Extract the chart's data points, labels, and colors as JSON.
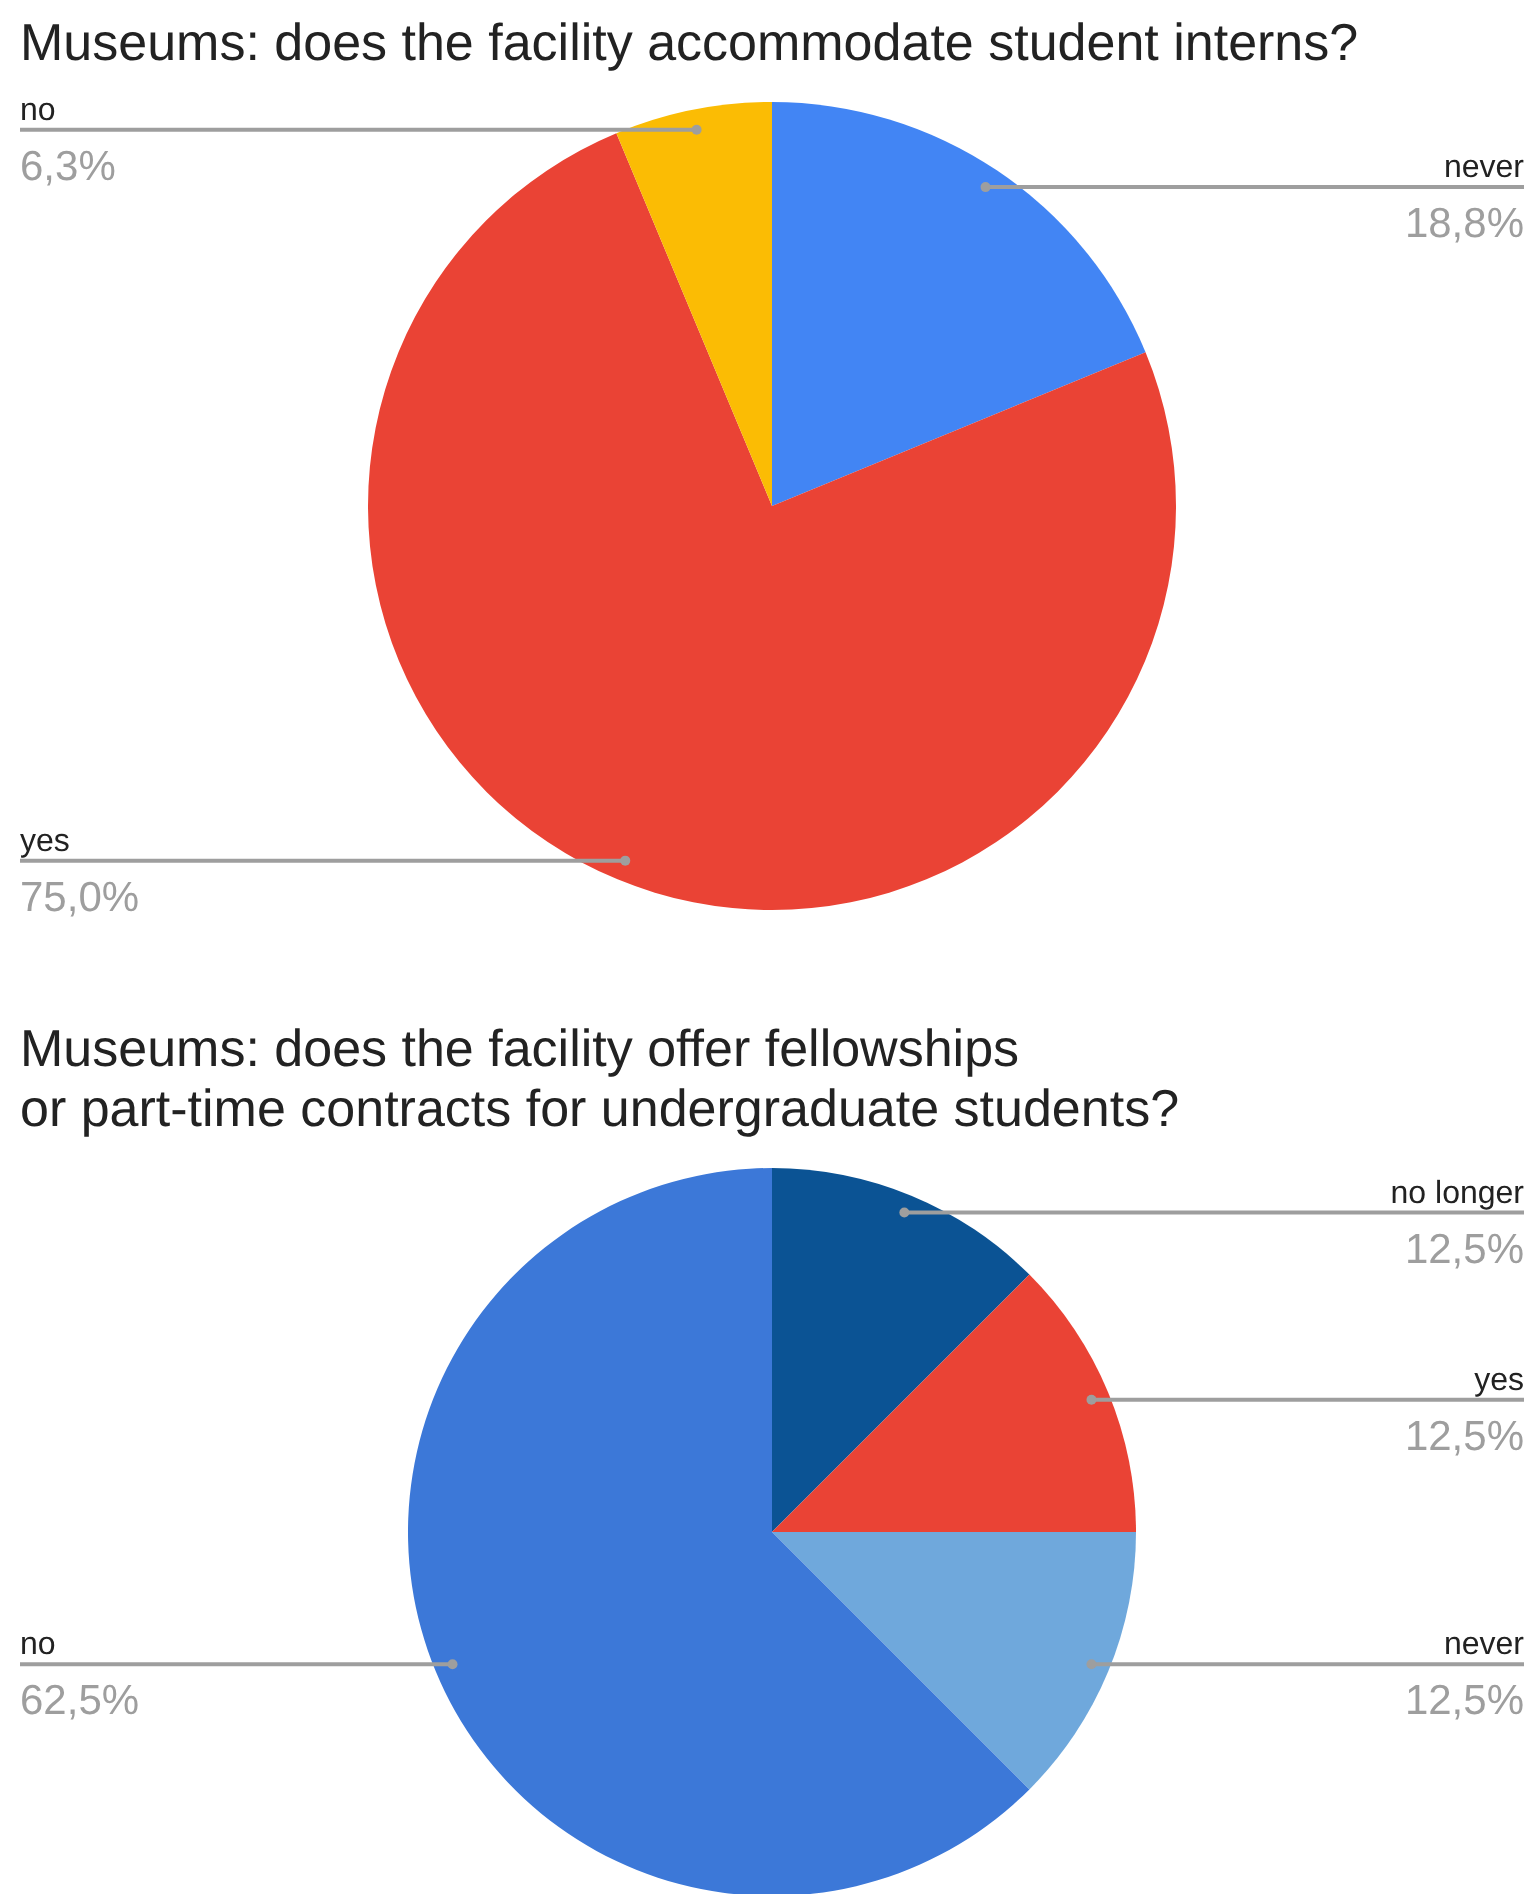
{
  "chart_data": [
    {
      "type": "pie",
      "title": "Museums: does the facility accommodate student interns?",
      "categories": [
        "never",
        "yes",
        "no"
      ],
      "values": [
        18.8,
        75.0,
        6.3
      ],
      "colors": [
        "#4285f4",
        "#ea4335",
        "#fbbc04"
      ],
      "value_labels": [
        "18,8%",
        "75,0%",
        "6,3%"
      ]
    },
    {
      "type": "pie",
      "title": "Museums: does the facility offer fellowships\nor part-time contracts for undergraduate students?",
      "categories": [
        "no longer",
        "yes",
        "never",
        "no"
      ],
      "values": [
        12.5,
        12.5,
        12.5,
        62.5
      ],
      "colors": [
        "#0b5394",
        "#ea4335",
        "#6fa8dc",
        "#3c78d8"
      ],
      "value_labels": [
        "12,5%",
        "12,5%",
        "12,5%",
        "62,5%"
      ]
    }
  ]
}
